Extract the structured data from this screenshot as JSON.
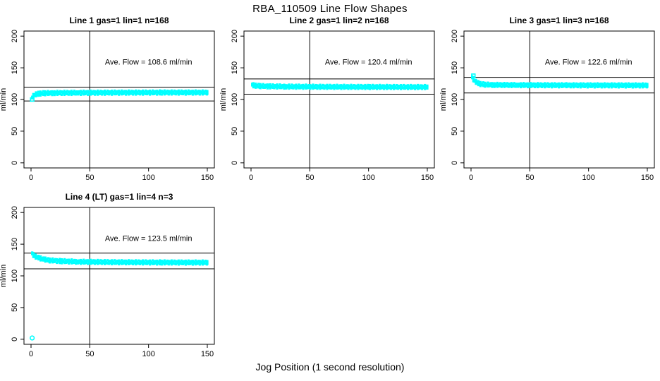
{
  "figure": {
    "title": "RBA_110509  Line Flow Shapes",
    "xlabel": "Jog Position (1 second resolution)",
    "background": "#ffffff",
    "line_color": "#000000",
    "point_color": "#00FFFF"
  },
  "chart_data": {
    "type": "scatter",
    "title": "RBA_110509  Line Flow Shapes",
    "xlabel": "Jog Position (1 second resolution)",
    "ylabel": "ml/min",
    "xlim": [
      0,
      150
    ],
    "ylim": [
      0,
      200
    ],
    "x_ticks": [
      0,
      50,
      100,
      150
    ],
    "y_ticks": [
      0,
      50,
      100,
      150,
      200
    ],
    "grid": false,
    "point_color": "#00FFFF",
    "reference_vline_x": 50,
    "panels": [
      {
        "title": "Line 1 gas=1 lin=1 n=168",
        "ave_flow_label": "Ave. Flow =  108.6  ml/min",
        "ave_flow": 108.6,
        "upper_line": 119.5,
        "lower_line": 97.7,
        "vline_x": 50,
        "band": [
          [
            1,
            103
          ],
          [
            2,
            105.5
          ],
          [
            3,
            107
          ],
          [
            5,
            108.5
          ],
          [
            8,
            109.5
          ],
          [
            12,
            110
          ],
          [
            20,
            110.3
          ],
          [
            40,
            110.6
          ],
          [
            70,
            110.8
          ],
          [
            110,
            111
          ],
          [
            150,
            111
          ]
        ],
        "outliers": [
          {
            "x": 1,
            "y": 100,
            "shape": "square-open"
          }
        ]
      },
      {
        "title": "Line 2 gas=1 lin=2 n=168",
        "ave_flow_label": "Ave. Flow =  120.4  ml/min",
        "ave_flow": 120.4,
        "upper_line": 132.4,
        "lower_line": 108.4,
        "vline_x": 50,
        "band": [
          [
            1,
            123.5
          ],
          [
            2,
            122.5
          ],
          [
            4,
            121.8
          ],
          [
            8,
            121.2
          ],
          [
            15,
            120.8
          ],
          [
            30,
            120.4
          ],
          [
            60,
            120
          ],
          [
            100,
            119.8
          ],
          [
            150,
            119.6
          ]
        ],
        "outliers": []
      },
      {
        "title": "Line 3 gas=1 lin=3 n=168",
        "ave_flow_label": "Ave. Flow =  122.6  ml/min",
        "ave_flow": 122.6,
        "upper_line": 134.9,
        "lower_line": 110.3,
        "vline_x": 50,
        "band": [
          [
            1,
            135
          ],
          [
            2,
            132
          ],
          [
            3,
            129.5
          ],
          [
            5,
            126.5
          ],
          [
            8,
            124.5
          ],
          [
            12,
            123.5
          ],
          [
            20,
            123
          ],
          [
            40,
            122.7
          ],
          [
            80,
            122.4
          ],
          [
            150,
            122.2
          ]
        ],
        "outliers": [
          {
            "x": 2,
            "y": 137.5,
            "shape": "square-open"
          }
        ]
      },
      {
        "title": "Line 4 (LT) gas=1 lin=4 n=3",
        "ave_flow_label": "Ave. Flow =  123.5  ml/min",
        "ave_flow": 123.5,
        "upper_line": 135.9,
        "lower_line": 111.2,
        "vline_x": 50,
        "band": [
          [
            1,
            135.5
          ],
          [
            2,
            133
          ],
          [
            4,
            130.5
          ],
          [
            7,
            128
          ],
          [
            11,
            126
          ],
          [
            16,
            124.5
          ],
          [
            25,
            123.3
          ],
          [
            40,
            122.3
          ],
          [
            70,
            121.6
          ],
          [
            110,
            121.2
          ],
          [
            150,
            121
          ]
        ],
        "outliers": [
          {
            "x": 1,
            "y": 2,
            "shape": "circle-open"
          }
        ]
      }
    ]
  }
}
